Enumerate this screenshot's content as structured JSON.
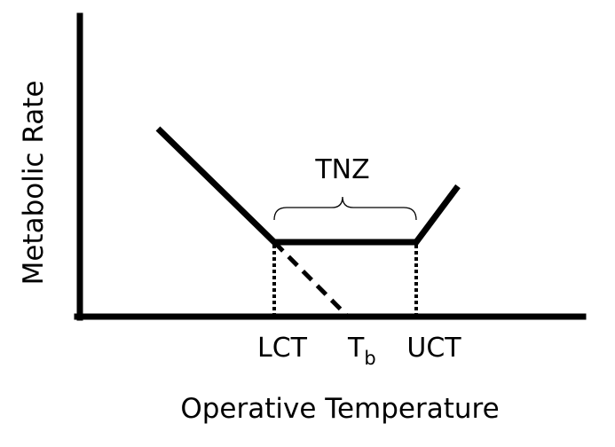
{
  "diagram": {
    "title": "",
    "y_axis_label": "Metabolic Rate",
    "x_axis_label": "Operative Temperature",
    "zone_label": "TNZ",
    "markers": {
      "lct": "LCT",
      "tb_main": "T",
      "tb_sub": "b",
      "uct": "UCT"
    },
    "colors": {
      "line": "#000000",
      "background": "#ffffff"
    }
  }
}
